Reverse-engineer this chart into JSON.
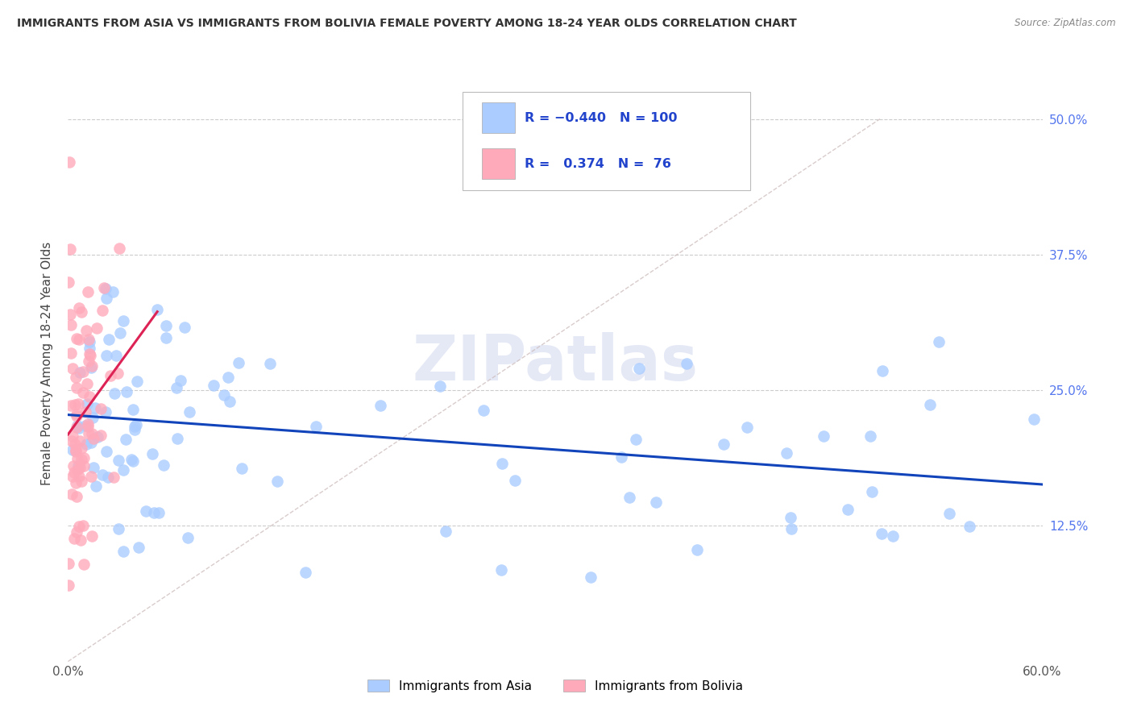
{
  "title": "IMMIGRANTS FROM ASIA VS IMMIGRANTS FROM BOLIVIA FEMALE POVERTY AMONG 18-24 YEAR OLDS CORRELATION CHART",
  "source": "Source: ZipAtlas.com",
  "ylabel": "Female Poverty Among 18-24 Year Olds",
  "xlim": [
    0.0,
    0.6
  ],
  "ylim": [
    0.0,
    0.55
  ],
  "ytick_values": [
    0.125,
    0.25,
    0.375,
    0.5
  ],
  "ytick_labels": [
    "12.5%",
    "25.0%",
    "37.5%",
    "50.0%"
  ],
  "color_asia": "#aaccff",
  "color_bolivia": "#ffaabb",
  "color_trendline_asia": "#1144bb",
  "color_trendline_bolivia": "#dd2255",
  "color_diagonal": "#ddaaaa",
  "watermark": "ZIPatlas",
  "asia_seed": 42,
  "bolivia_seed": 99
}
